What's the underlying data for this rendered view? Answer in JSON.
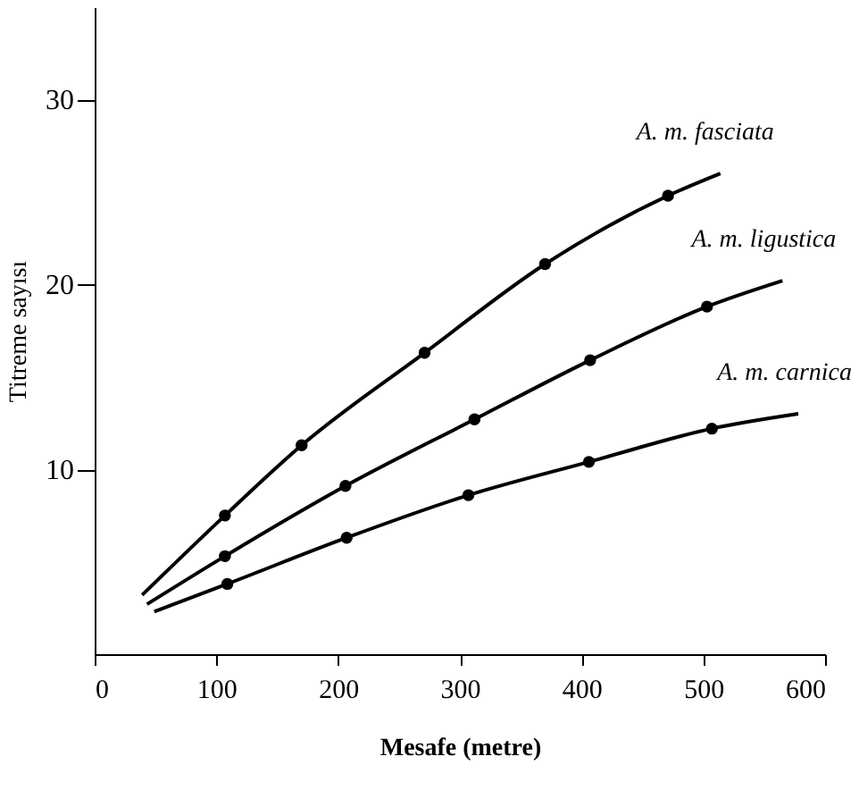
{
  "chart_data": {
    "type": "line",
    "xlabel": "Mesafe (metre)",
    "ylabel": "Titreme sayısı",
    "xlim": [
      0,
      600
    ],
    "xticks": [
      0,
      100,
      200,
      300,
      400,
      500,
      600
    ],
    "ylim": [
      0,
      35
    ],
    "yticks": [
      10,
      20,
      30
    ],
    "series": [
      {
        "name": "A. m. fasciata",
        "color": "#000000",
        "marker": "none",
        "x": [
          39,
          107,
          170,
          271,
          370,
          471,
          514
        ],
        "values": [
          3.2,
          7.5,
          11.3,
          16.3,
          21.1,
          24.8,
          26.0
        ]
      },
      {
        "name": "A. m. ligustica",
        "color": "#000000",
        "marker": "none",
        "x": [
          43,
          107,
          206,
          312,
          407,
          503,
          565
        ],
        "values": [
          2.7,
          5.3,
          9.1,
          12.7,
          15.9,
          18.8,
          20.2
        ]
      },
      {
        "name": "A. m. carnica",
        "color": "#000000",
        "marker": "none",
        "x": [
          49,
          109,
          207,
          307,
          406,
          507,
          578
        ],
        "values": [
          2.3,
          3.8,
          6.3,
          8.6,
          10.4,
          12.2,
          13.0
        ]
      },
      {
        "type": "scatter",
        "color": "#000000",
        "marker": "circle",
        "x": [
          107,
          170,
          271,
          370,
          471
        ],
        "values": [
          7.5,
          11.3,
          16.3,
          21.1,
          24.8
        ]
      },
      {
        "type": "scatter",
        "color": "#000000",
        "marker": "circle",
        "x": [
          107,
          206,
          312,
          407,
          503
        ],
        "values": [
          5.3,
          9.1,
          12.7,
          15.9,
          18.8
        ]
      },
      {
        "type": "scatter",
        "color": "#000000",
        "marker": "circle",
        "x": [
          109,
          207,
          307,
          406,
          507
        ],
        "values": [
          3.8,
          6.3,
          8.6,
          10.4,
          12.2
        ]
      }
    ]
  }
}
